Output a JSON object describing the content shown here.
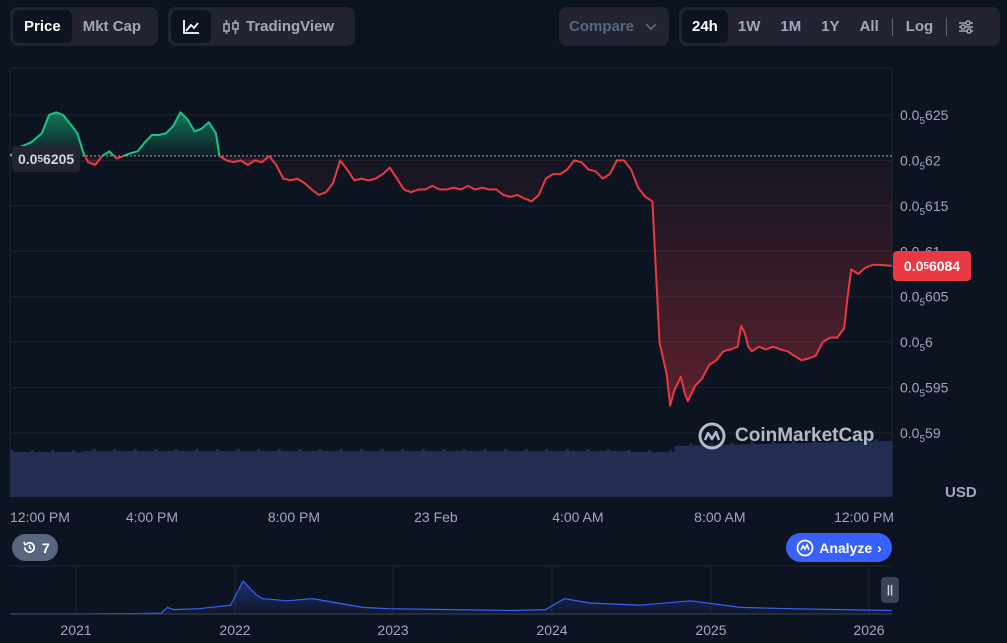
{
  "toolbar": {
    "type_tabs": [
      "Price",
      "Mkt Cap"
    ],
    "type_active": "Price",
    "view_tradingview_label": "TradingView",
    "compare_label": "Compare",
    "range_tabs": [
      "24h",
      "1W",
      "1M",
      "1Y",
      "All"
    ],
    "range_active": "24h",
    "log_label": "Log"
  },
  "colors": {
    "background": "#0d1421",
    "up": "#16c784",
    "down": "#ea3943",
    "volume": "#2b3562",
    "navigator": "#3861fb",
    "accent": "#3861fb"
  },
  "chart_data": {
    "type": "line",
    "reference_price": "0.056205",
    "reference_label_prefix": "0.0",
    "reference_label_sub": "5",
    "reference_label_rest": "6205",
    "current_label_prefix": "0.0",
    "current_label_sub": "5",
    "current_label_rest": "6084",
    "y_ticks": [
      {
        "prefix": "0.0",
        "sub": "5",
        "rest": "625",
        "value": 0.0625
      },
      {
        "prefix": "0.0",
        "sub": "5",
        "rest": "62",
        "value": 0.062
      },
      {
        "prefix": "0.0",
        "sub": "5",
        "rest": "615",
        "value": 0.0615
      },
      {
        "prefix": "0.0",
        "sub": "5",
        "rest": "61",
        "value": 0.061
      },
      {
        "prefix": "0.0",
        "sub": "5",
        "rest": "605",
        "value": 0.0605
      },
      {
        "prefix": "0.0",
        "sub": "5",
        "rest": "6",
        "value": 0.06
      },
      {
        "prefix": "0.0",
        "sub": "5",
        "rest": "595",
        "value": 0.0595
      },
      {
        "prefix": "0.0",
        "sub": "5",
        "rest": "59",
        "value": 0.059
      }
    ],
    "ylim": [
      0.05885,
      0.06305
    ],
    "reference_value": 0.06205,
    "currency": "USD",
    "x_ticks": [
      {
        "label": "12:00 PM",
        "hour": 0
      },
      {
        "label": "4:00 PM",
        "hour": 4
      },
      {
        "label": "8:00 PM",
        "hour": 8
      },
      {
        "label": "23 Feb",
        "hour": 12
      },
      {
        "label": "4:00 AM",
        "hour": 16
      },
      {
        "label": "8:00 AM",
        "hour": 20
      },
      {
        "label": "12:00 PM",
        "hour": 24
      }
    ],
    "xlim_hours": [
      0,
      24.85
    ],
    "series": [
      {
        "values": [
          [
            0.0,
            0.06205
          ],
          [
            0.3,
            0.06215
          ],
          [
            0.6,
            0.0622
          ],
          [
            0.9,
            0.0623
          ],
          [
            1.1,
            0.0625
          ],
          [
            1.3,
            0.06253
          ],
          [
            1.5,
            0.0625
          ],
          [
            1.7,
            0.0624
          ],
          [
            1.9,
            0.0623
          ],
          [
            2.05,
            0.0621
          ],
          [
            2.2,
            0.06198
          ],
          [
            2.4,
            0.06195
          ],
          [
            2.6,
            0.06205
          ],
          [
            2.8,
            0.0621
          ],
          [
            3.0,
            0.06202
          ],
          [
            3.2,
            0.06205
          ],
          [
            3.4,
            0.06208
          ],
          [
            3.6,
            0.0621
          ],
          [
            3.8,
            0.0622
          ],
          [
            4.0,
            0.06228
          ],
          [
            4.2,
            0.06228
          ],
          [
            4.4,
            0.0623
          ],
          [
            4.6,
            0.06238
          ],
          [
            4.8,
            0.06253
          ],
          [
            5.0,
            0.06245
          ],
          [
            5.2,
            0.06232
          ],
          [
            5.4,
            0.06235
          ],
          [
            5.6,
            0.06242
          ],
          [
            5.8,
            0.0623
          ],
          [
            5.9,
            0.06205
          ],
          [
            6.1,
            0.062
          ],
          [
            6.3,
            0.06198
          ],
          [
            6.5,
            0.062
          ],
          [
            6.7,
            0.06195
          ],
          [
            6.9,
            0.062
          ],
          [
            7.1,
            0.06198
          ],
          [
            7.3,
            0.06205
          ],
          [
            7.5,
            0.06195
          ],
          [
            7.7,
            0.0618
          ],
          [
            7.9,
            0.06178
          ],
          [
            8.1,
            0.0618
          ],
          [
            8.3,
            0.06175
          ],
          [
            8.5,
            0.06168
          ],
          [
            8.7,
            0.06162
          ],
          [
            8.9,
            0.06165
          ],
          [
            9.1,
            0.06175
          ],
          [
            9.3,
            0.062
          ],
          [
            9.5,
            0.0619
          ],
          [
            9.7,
            0.06178
          ],
          [
            9.9,
            0.0618
          ],
          [
            10.1,
            0.06178
          ],
          [
            10.3,
            0.0618
          ],
          [
            10.5,
            0.06185
          ],
          [
            10.7,
            0.06192
          ],
          [
            10.9,
            0.0618
          ],
          [
            11.1,
            0.06168
          ],
          [
            11.3,
            0.06165
          ],
          [
            11.5,
            0.06168
          ],
          [
            11.7,
            0.06168
          ],
          [
            11.9,
            0.06172
          ],
          [
            12.1,
            0.06168
          ],
          [
            12.3,
            0.06168
          ],
          [
            12.5,
            0.0617
          ],
          [
            12.7,
            0.06168
          ],
          [
            12.9,
            0.06172
          ],
          [
            13.1,
            0.06168
          ],
          [
            13.3,
            0.0617
          ],
          [
            13.5,
            0.06168
          ],
          [
            13.7,
            0.06168
          ],
          [
            13.9,
            0.06162
          ],
          [
            14.1,
            0.0616
          ],
          [
            14.3,
            0.06162
          ],
          [
            14.5,
            0.06158
          ],
          [
            14.7,
            0.06155
          ],
          [
            14.9,
            0.06162
          ],
          [
            15.1,
            0.0618
          ],
          [
            15.3,
            0.06185
          ],
          [
            15.5,
            0.06185
          ],
          [
            15.7,
            0.0619
          ],
          [
            15.9,
            0.062
          ],
          [
            16.1,
            0.06198
          ],
          [
            16.3,
            0.0619
          ],
          [
            16.5,
            0.06188
          ],
          [
            16.7,
            0.0618
          ],
          [
            16.9,
            0.06185
          ],
          [
            17.1,
            0.062
          ],
          [
            17.3,
            0.062
          ],
          [
            17.5,
            0.0619
          ],
          [
            17.7,
            0.0617
          ],
          [
            17.9,
            0.0616
          ],
          [
            18.1,
            0.06155
          ],
          [
            18.3,
            0.06
          ],
          [
            18.5,
            0.05965
          ],
          [
            18.6,
            0.0593
          ],
          [
            18.7,
            0.05945
          ],
          [
            18.9,
            0.05962
          ],
          [
            19.0,
            0.05945
          ],
          [
            19.1,
            0.05935
          ],
          [
            19.3,
            0.05952
          ],
          [
            19.5,
            0.0596
          ],
          [
            19.7,
            0.05975
          ],
          [
            19.9,
            0.0598
          ],
          [
            20.1,
            0.0599
          ],
          [
            20.3,
            0.05992
          ],
          [
            20.5,
            0.05995
          ],
          [
            20.6,
            0.06018
          ],
          [
            20.7,
            0.0601
          ],
          [
            20.8,
            0.05995
          ],
          [
            20.9,
            0.0599
          ],
          [
            21.1,
            0.05995
          ],
          [
            21.3,
            0.05992
          ],
          [
            21.5,
            0.05995
          ],
          [
            21.7,
            0.05992
          ],
          [
            21.9,
            0.0599
          ],
          [
            22.1,
            0.05985
          ],
          [
            22.3,
            0.0598
          ],
          [
            22.5,
            0.05982
          ],
          [
            22.7,
            0.05985
          ],
          [
            22.9,
            0.06
          ],
          [
            23.1,
            0.06005
          ],
          [
            23.3,
            0.06005
          ],
          [
            23.5,
            0.06015
          ],
          [
            23.6,
            0.0605
          ],
          [
            23.7,
            0.0608
          ],
          [
            23.9,
            0.06075
          ],
          [
            24.1,
            0.06082
          ],
          [
            24.3,
            0.06085
          ],
          [
            24.5,
            0.06085
          ],
          [
            24.85,
            0.06084
          ]
        ]
      }
    ],
    "navigator": {
      "x_labels": [
        "2021",
        "2022",
        "2023",
        "2024",
        "2025",
        "2026"
      ],
      "values": [
        [
          0,
          0
        ],
        [
          0.5,
          0
        ],
        [
          1.0,
          0.01
        ],
        [
          1.2,
          0.02
        ],
        [
          1.25,
          0.15
        ],
        [
          1.3,
          0.1
        ],
        [
          1.5,
          0.12
        ],
        [
          1.75,
          0.2
        ],
        [
          1.85,
          0.75
        ],
        [
          1.95,
          0.45
        ],
        [
          2.0,
          0.35
        ],
        [
          2.2,
          0.3
        ],
        [
          2.4,
          0.35
        ],
        [
          2.6,
          0.25
        ],
        [
          2.8,
          0.15
        ],
        [
          3.0,
          0.12
        ],
        [
          3.5,
          0.1
        ],
        [
          4.0,
          0.08
        ],
        [
          4.25,
          0.1
        ],
        [
          4.4,
          0.35
        ],
        [
          4.6,
          0.25
        ],
        [
          5.0,
          0.2
        ],
        [
          5.4,
          0.3
        ],
        [
          5.8,
          0.15
        ],
        [
          6.2,
          0.12
        ],
        [
          6.6,
          0.1
        ],
        [
          7.0,
          0.08
        ]
      ]
    }
  },
  "watermark": "CoinMarketCap",
  "history_count": "7",
  "analyze_label": "Analyze"
}
